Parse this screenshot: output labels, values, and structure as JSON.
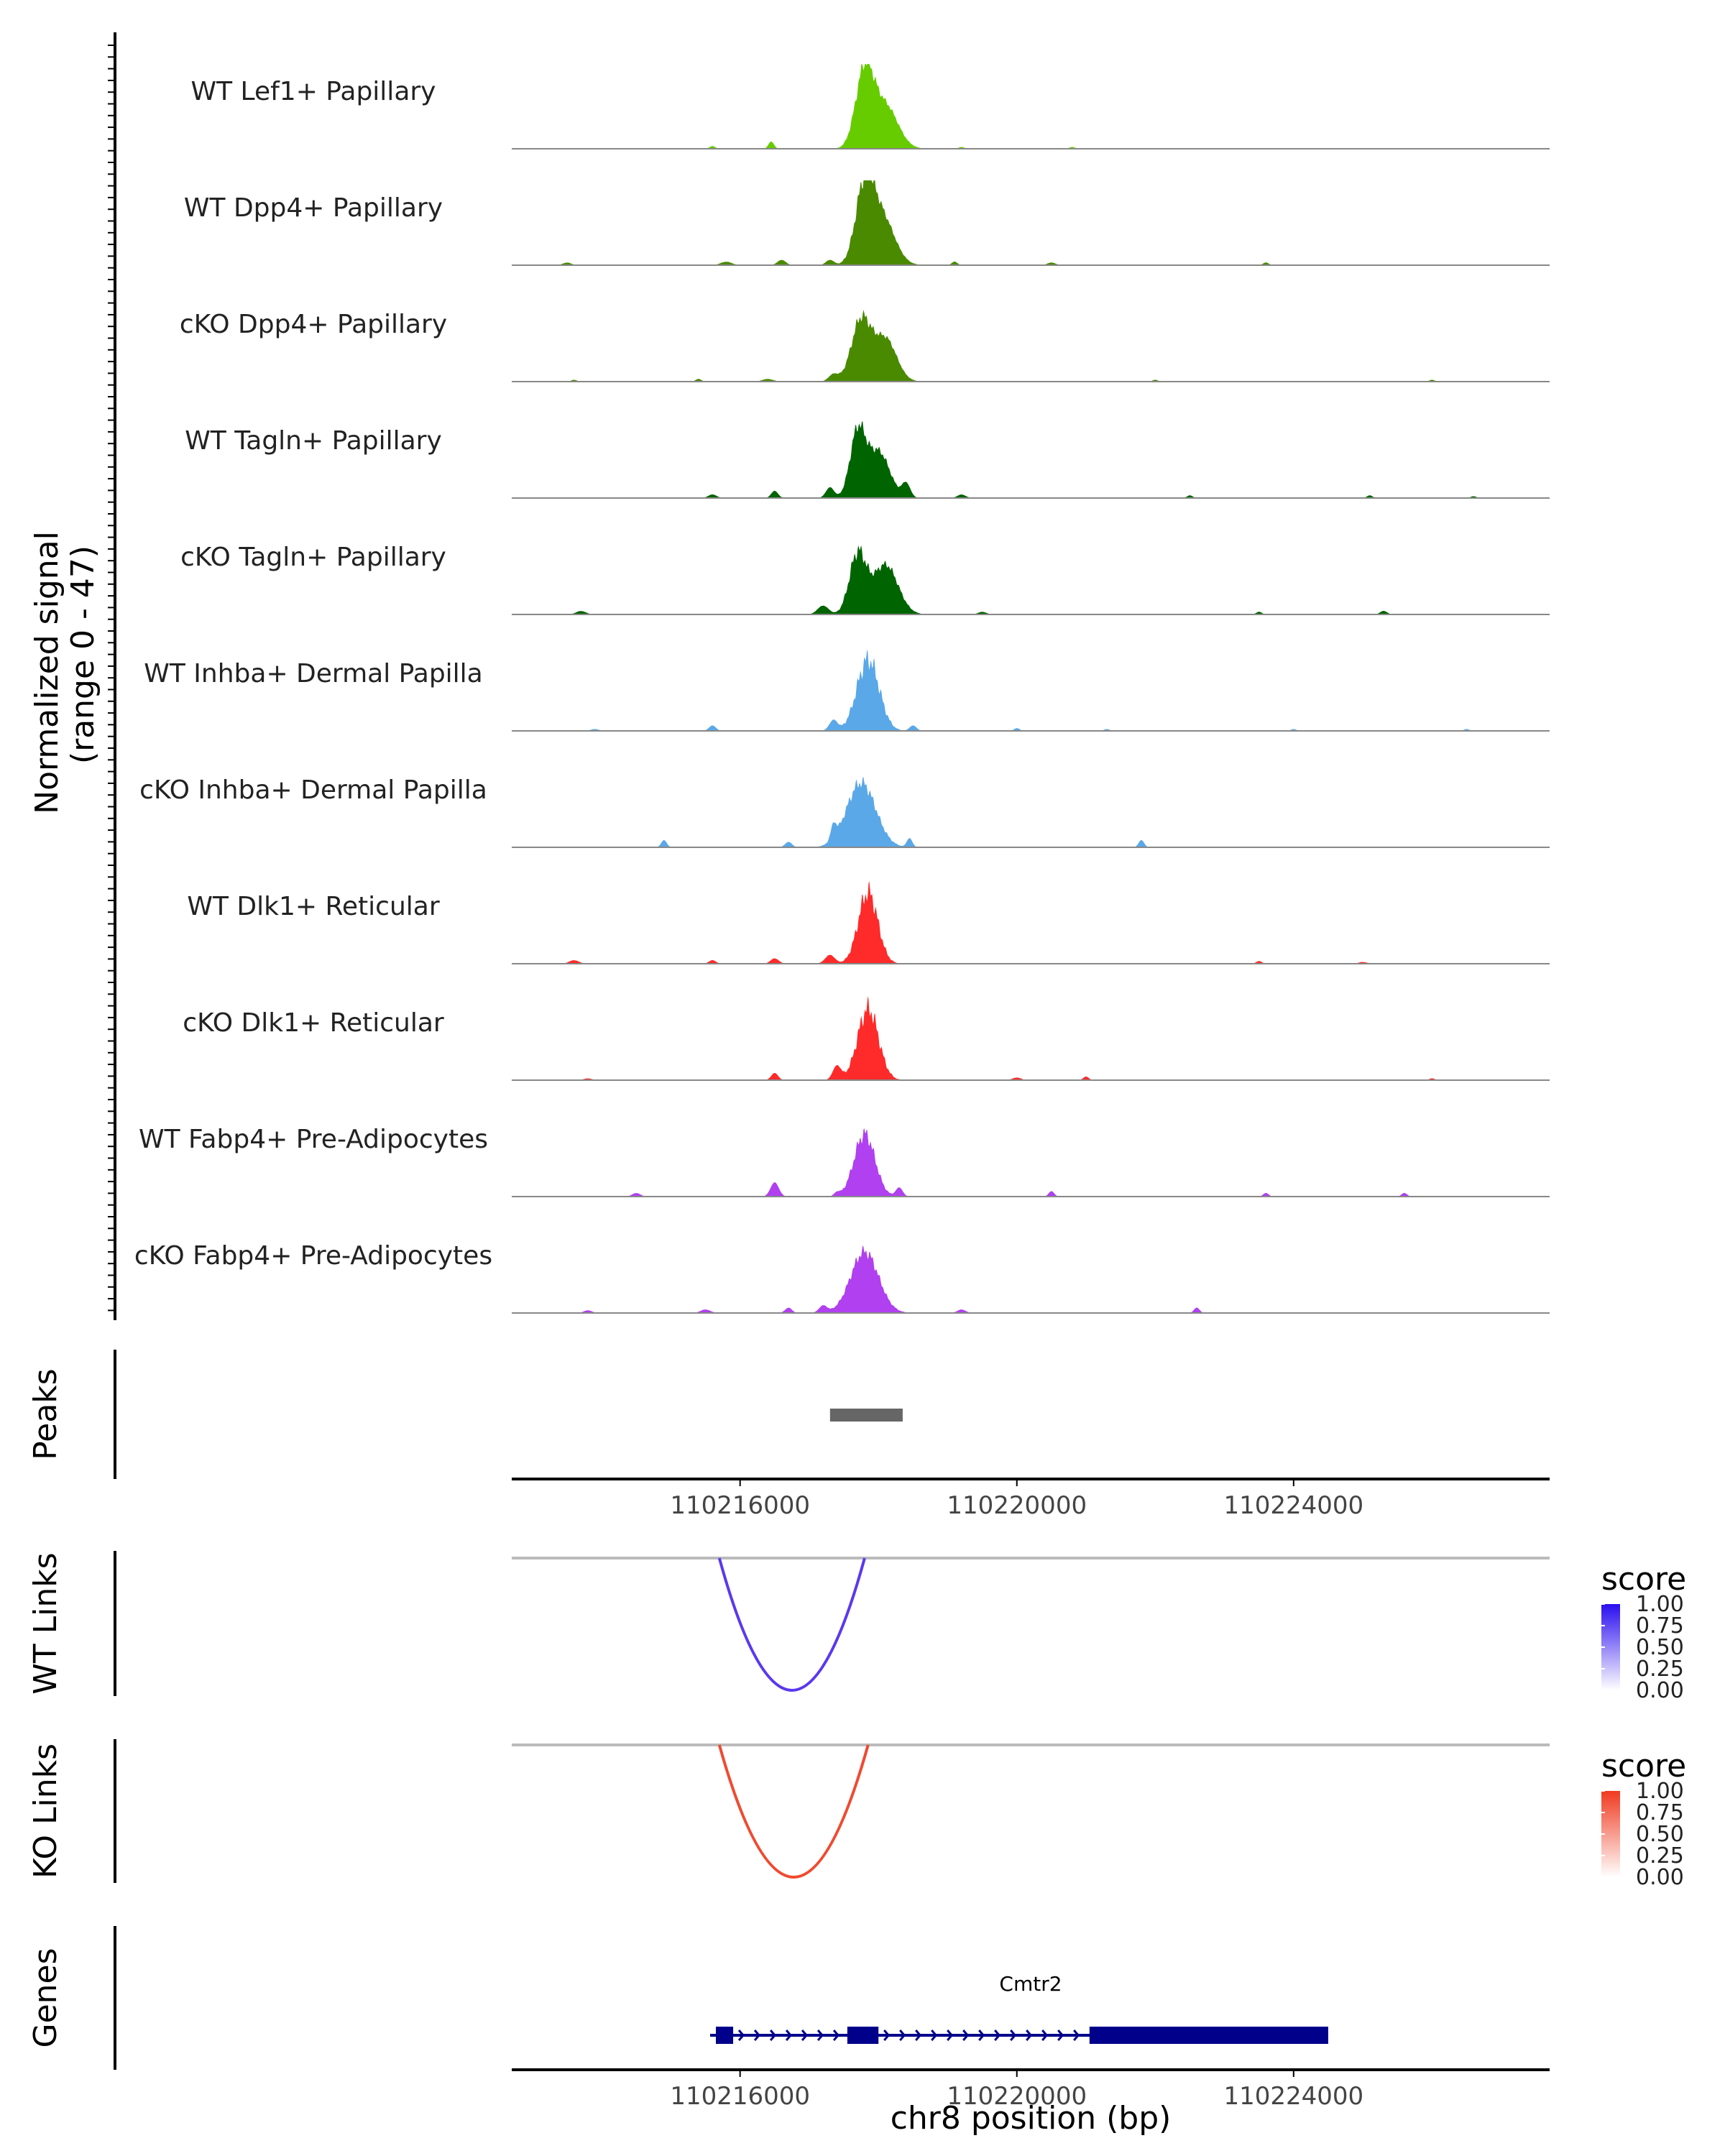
{
  "colors": {
    "lef1": "#66cc00",
    "dpp4": "#4a8a00",
    "tagln": "#006400",
    "inhba": "#5aa8e8",
    "dlk1": "#ff2a2a",
    "fabp4": "#b040f0",
    "peak_bar": "#666666",
    "wt_link": "#5a38f0",
    "ko_link": "#f04a30",
    "gene": "#00008b",
    "axis": "#000000",
    "baseline": "#888888",
    "tick_text": "#444444"
  },
  "labels": {
    "signal_ylabel_line1": "Normalized signal",
    "signal_ylabel_line2": "(range 0 - 47)",
    "peaks": "Peaks",
    "wt_links": "WT Links",
    "ko_links": "KO Links",
    "genes": "Genes",
    "gene_name": "Cmtr2",
    "legend_title_wt": "score",
    "legend_title_ko": "score"
  },
  "chart_data": {
    "type": "area",
    "title": "",
    "xlabel": "chr8 position (bp)",
    "xlim": [
      110212700,
      110227700
    ],
    "x_ticks": [
      110216000,
      110220000,
      110224000
    ],
    "x_tick_labels": [
      "110216000",
      "110220000",
      "110224000"
    ],
    "ylim": [
      0,
      47
    ],
    "tracks": [
      {
        "name": "WT Lef1+ Papillary",
        "color": "lef1",
        "peaks": [
          [
            110217800,
            47,
            130,
            20
          ],
          [
            110218100,
            25,
            180,
            10
          ],
          [
            110216450,
            4,
            40,
            0
          ],
          [
            110215600,
            1.5,
            40,
            0
          ],
          [
            110219200,
            1,
            40,
            0
          ],
          [
            110220800,
            1,
            40,
            0
          ]
        ]
      },
      {
        "name": "WT Dpp4+ Papillary",
        "color": "dpp4",
        "peaks": [
          [
            110217800,
            47,
            130,
            25
          ],
          [
            110218050,
            28,
            180,
            10
          ],
          [
            110216600,
            3,
            60,
            3
          ],
          [
            110217300,
            3,
            60,
            5
          ],
          [
            110213500,
            1.5,
            60,
            8
          ],
          [
            110215800,
            2,
            80,
            8
          ],
          [
            110219100,
            2,
            40,
            0
          ],
          [
            110220500,
            1.5,
            60,
            6
          ],
          [
            110223600,
            1.5,
            40,
            0
          ]
        ]
      },
      {
        "name": "cKO Dpp4+ Papillary",
        "color": "dpp4",
        "peaks": [
          [
            110217750,
            38,
            140,
            20
          ],
          [
            110218100,
            25,
            160,
            10
          ],
          [
            110217350,
            4,
            70,
            3
          ],
          [
            110216400,
            1.5,
            80,
            5
          ],
          [
            110215400,
            1.5,
            40,
            0
          ],
          [
            110222000,
            1,
            40,
            0
          ],
          [
            110226000,
            1,
            40,
            0
          ],
          [
            110213600,
            1,
            40,
            0
          ]
        ]
      },
      {
        "name": "WT Tagln+ Papillary",
        "color": "tagln",
        "peaks": [
          [
            110217700,
            40,
            110,
            20
          ],
          [
            110218000,
            28,
            160,
            15
          ],
          [
            110218400,
            8,
            60,
            3
          ],
          [
            110217300,
            6,
            60,
            2
          ],
          [
            110216500,
            4,
            50,
            0
          ],
          [
            110215600,
            2,
            60,
            0
          ],
          [
            110219200,
            2,
            60,
            3
          ],
          [
            110222500,
            1.5,
            40,
            0
          ],
          [
            110225100,
            1.5,
            40,
            0
          ],
          [
            110226600,
            1,
            40,
            0
          ]
        ]
      },
      {
        "name": "cKO Tagln+ Papillary",
        "color": "tagln",
        "peaks": [
          [
            110217700,
            38,
            120,
            25
          ],
          [
            110218100,
            30,
            180,
            15
          ],
          [
            110217200,
            5,
            80,
            4
          ],
          [
            110213700,
            2,
            70,
            8
          ],
          [
            110225300,
            2,
            50,
            0
          ],
          [
            110219500,
            1.5,
            60,
            6
          ],
          [
            110223500,
            1.5,
            40,
            0
          ]
        ]
      },
      {
        "name": "WT Inhba+ Dermal Papilla",
        "color": "inhba",
        "peaks": [
          [
            110217850,
            47,
            160,
            30
          ],
          [
            110217350,
            6,
            60,
            2
          ],
          [
            110218500,
            3,
            50,
            0
          ],
          [
            110215600,
            3,
            50,
            0
          ],
          [
            110213900,
            1,
            60,
            3
          ],
          [
            110220000,
            1.5,
            40,
            0
          ],
          [
            110221300,
            1,
            40,
            0
          ],
          [
            110224000,
            1,
            40,
            0
          ],
          [
            110226500,
            1,
            40,
            0
          ]
        ]
      },
      {
        "name": "cKO Inhba+ Dermal Papilla",
        "color": "inhba",
        "peaks": [
          [
            110217750,
            40,
            210,
            20
          ],
          [
            110217350,
            8,
            40,
            0
          ],
          [
            110214900,
            4,
            40,
            0
          ],
          [
            110216700,
            3,
            50,
            0
          ],
          [
            110218450,
            5,
            40,
            0
          ],
          [
            110221800,
            4,
            40,
            0
          ]
        ]
      },
      {
        "name": "WT Dlk1+ Reticular",
        "color": "dlk1",
        "peaks": [
          [
            110217850,
            47,
            140,
            30
          ],
          [
            110217300,
            5,
            70,
            4
          ],
          [
            110216500,
            3,
            60,
            3
          ],
          [
            110215600,
            2,
            50,
            0
          ],
          [
            110213600,
            2,
            70,
            5
          ],
          [
            110223500,
            1.5,
            40,
            0
          ],
          [
            110225000,
            1,
            60,
            6
          ]
        ]
      },
      {
        "name": "cKO Dlk1+ Reticular",
        "color": "dlk1",
        "peaks": [
          [
            110217850,
            47,
            150,
            30
          ],
          [
            110217400,
            8,
            60,
            3
          ],
          [
            110216500,
            4,
            50,
            0
          ],
          [
            110220000,
            1.5,
            60,
            6
          ],
          [
            110221000,
            2,
            40,
            0
          ],
          [
            110213800,
            1,
            60,
            8
          ],
          [
            110226000,
            1,
            40,
            0
          ]
        ]
      },
      {
        "name": "WT Fabp4+ Pre-Adipocytes",
        "color": "fabp4",
        "peaks": [
          [
            110217800,
            40,
            150,
            25
          ],
          [
            110216500,
            8,
            60,
            2
          ],
          [
            110218300,
            5,
            50,
            0
          ],
          [
            110217400,
            2,
            40,
            0
          ],
          [
            110214500,
            2,
            60,
            3
          ],
          [
            110220500,
            3,
            40,
            0
          ],
          [
            110223600,
            2,
            40,
            0
          ],
          [
            110225600,
            2,
            40,
            0
          ]
        ]
      },
      {
        "name": "cKO Fabp4+ Pre-Adipocytes",
        "color": "fabp4",
        "peaks": [
          [
            110217800,
            38,
            200,
            20
          ],
          [
            110217200,
            4,
            60,
            3
          ],
          [
            110216700,
            3,
            50,
            3
          ],
          [
            110215500,
            2,
            70,
            5
          ],
          [
            110219200,
            2,
            60,
            5
          ],
          [
            110222600,
            3,
            40,
            0
          ],
          [
            110213800,
            1.5,
            60,
            5
          ]
        ]
      }
    ],
    "peak_regions": [
      [
        110217300,
        110218350
      ]
    ],
    "wt_links": [
      {
        "start": 110215700,
        "end": 110217800,
        "score": 1.0
      }
    ],
    "ko_links": [
      {
        "start": 110215700,
        "end": 110217850,
        "score": 1.0
      }
    ],
    "links_legend_ticks": [
      "1.00",
      "0.75",
      "0.50",
      "0.25",
      "0.00"
    ],
    "gene": {
      "name": "Cmtr2",
      "strand": "+",
      "start": 110215650,
      "end": 110224500,
      "exons": [
        [
          110215650,
          110215900
        ],
        [
          110217550,
          110218000
        ],
        [
          110221050,
          110224500
        ]
      ]
    }
  }
}
